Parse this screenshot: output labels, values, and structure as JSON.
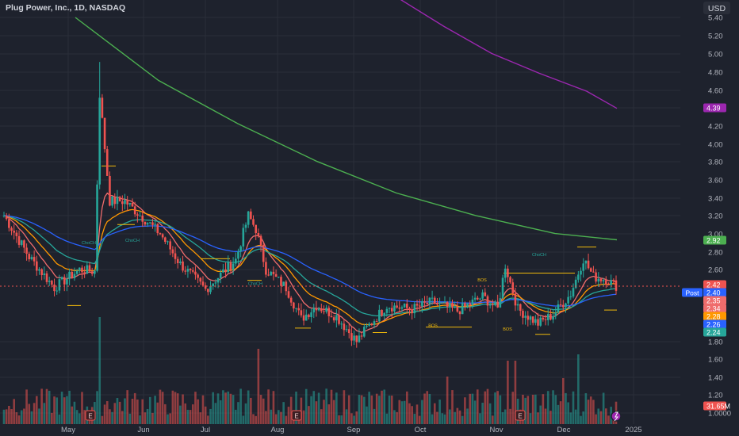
{
  "header": {
    "symbol_title": "Plug Power, Inc., 1D, NASDAQ",
    "currency": "USD"
  },
  "colors": {
    "background": "#1e222d",
    "grid": "#2a2e39",
    "up": "#26a69a",
    "down": "#ef5350",
    "ema_fast": "#ef6c6c",
    "ema_mid": "#ff9800",
    "ema_slow": "#26a69a",
    "sma_100": "#2962ff",
    "sma_200": "#4caf50",
    "sma_400": "#9c27b0",
    "structure": "#f0b90b",
    "choch": "#26a69a",
    "axis_text": "#b2b5be"
  },
  "chart_data": {
    "type": "candlestick",
    "title": "Plug Power, Inc., 1D, NASDAQ",
    "y_ticks": [
      "5.40",
      "5.20",
      "5.00",
      "4.80",
      "4.60",
      "4.40",
      "4.20",
      "4.00",
      "3.80",
      "3.60",
      "3.40",
      "3.20",
      "3.00",
      "2.80",
      "2.60",
      "1.80",
      "1.60",
      "1.40",
      "1.20",
      "1.0000"
    ],
    "x_ticks": [
      "May",
      "Jun",
      "Jul",
      "Aug",
      "Sep",
      "Oct",
      "Nov",
      "Dec",
      "2025"
    ],
    "grid": true,
    "price_badges": [
      {
        "value": "4.39",
        "color": "#9c27b0"
      },
      {
        "value": "2.92",
        "color": "#4caf50"
      },
      {
        "value": "2.42",
        "color": "#ef5350"
      },
      {
        "value": "2.40",
        "color": "#2962ff",
        "tag": "Post"
      },
      {
        "value": "2.35",
        "color": "#ef6c6c"
      },
      {
        "value": "2.34",
        "color": "#ef6c6c"
      },
      {
        "value": "2.28",
        "color": "#ff9800"
      },
      {
        "value": "2.26",
        "color": "#2962ff"
      },
      {
        "value": "2.24",
        "color": "#26a69a"
      },
      {
        "value": "31.65M",
        "color": "#ef5350"
      }
    ],
    "annotations": [
      {
        "text": "ChoCH",
        "type": "choch"
      },
      {
        "text": "ChoCH",
        "type": "choch"
      },
      {
        "text": "ChoCH",
        "type": "choch"
      },
      {
        "text": "BOS",
        "type": "bos"
      },
      {
        "text": "BOS",
        "type": "bos"
      },
      {
        "text": "BOS",
        "type": "bos"
      },
      {
        "text": "ChoCH",
        "type": "choch"
      }
    ],
    "event_markers": [
      "E",
      "E",
      "E"
    ],
    "ohlc_anchors": [
      [
        0,
        3.2
      ],
      [
        10,
        2.74
      ],
      [
        20,
        2.4
      ],
      [
        30,
        2.6
      ],
      [
        36,
        2.58
      ],
      [
        38,
        4.55
      ],
      [
        42,
        3.36
      ],
      [
        48,
        3.36
      ],
      [
        55,
        3.18
      ],
      [
        62,
        3.0
      ],
      [
        70,
        2.66
      ],
      [
        80,
        2.38
      ],
      [
        92,
        2.71
      ],
      [
        97,
        3.2
      ],
      [
        100,
        3.05
      ],
      [
        104,
        2.6
      ],
      [
        112,
        2.4
      ],
      [
        118,
        2.05
      ],
      [
        124,
        2.2
      ],
      [
        132,
        2.08
      ],
      [
        140,
        1.8
      ],
      [
        144,
        1.95
      ],
      [
        152,
        2.2
      ],
      [
        162,
        2.16
      ],
      [
        170,
        2.24
      ],
      [
        180,
        2.14
      ],
      [
        190,
        2.3
      ],
      [
        196,
        2.16
      ],
      [
        199,
        2.65
      ],
      [
        204,
        2.16
      ],
      [
        212,
        2.0
      ],
      [
        218,
        2.1
      ],
      [
        225,
        2.33
      ],
      [
        230,
        2.72
      ],
      [
        234,
        2.52
      ],
      [
        239,
        2.49
      ],
      [
        243,
        2.42
      ]
    ]
  }
}
